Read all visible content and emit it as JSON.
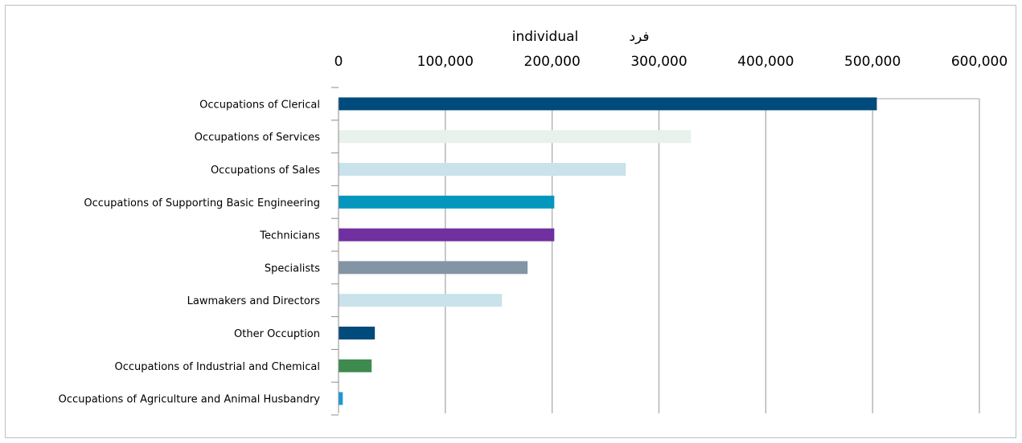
{
  "chart_data": {
    "type": "bar",
    "orientation": "horizontal",
    "unit_label_en": "individual",
    "unit_label_ar": "فرد",
    "x_ticks": [
      "0",
      "100,000",
      "200,000",
      "300,000",
      "400,000",
      "500,000",
      "600,000"
    ],
    "xlim": [
      0,
      600000
    ],
    "grid": true,
    "categories": [
      "Occupations of Clerical",
      "Occupations of Services",
      "Occupations of Sales",
      "Occupations of Supporting Basic Engineering",
      "Technicians",
      "Specialists",
      "Lawmakers and Directors",
      "Other Occuption",
      "Occupations of Industrial and Chemical",
      "Occupations of Agriculture and Animal Husbandry"
    ],
    "values": [
      504000,
      330000,
      269000,
      202000,
      202000,
      177000,
      153000,
      34000,
      31000,
      4000
    ],
    "colors": [
      "#004b7c",
      "#e8f1ec",
      "#c9e2ec",
      "#0397bd",
      "#7030a0",
      "#8394a5",
      "#c9e2ec",
      "#004b7c",
      "#3d8b4f",
      "#1a9ad6"
    ]
  }
}
